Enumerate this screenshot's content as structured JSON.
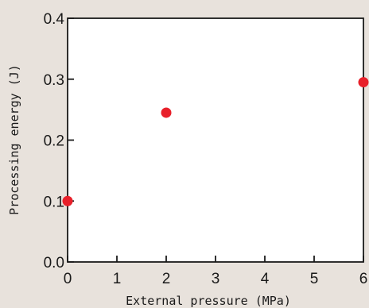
{
  "chart_data": {
    "type": "scatter",
    "title": "",
    "xlabel": "External pressure (MPa)",
    "ylabel": "Processing energy (J)",
    "xlim": [
      0,
      6
    ],
    "ylim": [
      0,
      0.4
    ],
    "x_ticks": [
      "0",
      "1",
      "2",
      "3",
      "4",
      "5",
      "6"
    ],
    "y_ticks": [
      "0.0",
      "0.1",
      "0.2",
      "0.3",
      "0.4"
    ],
    "grid": false,
    "legend": "none",
    "series": [
      {
        "color": "#e8202a",
        "points": [
          {
            "x": 0,
            "y": 0.1
          },
          {
            "x": 2,
            "y": 0.245
          },
          {
            "x": 6,
            "y": 0.295
          }
        ]
      }
    ]
  }
}
